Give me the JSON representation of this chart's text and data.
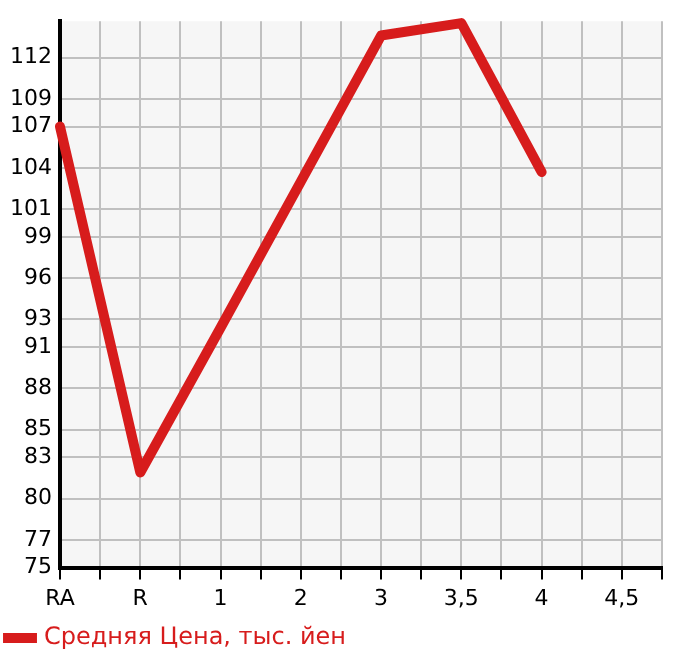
{
  "chart_data": {
    "type": "line",
    "categories": [
      "RA",
      null,
      "R",
      null,
      "1",
      null,
      "2",
      null,
      "3",
      null,
      "3,5",
      null,
      "4",
      null,
      "4,5",
      null
    ],
    "series": [
      {
        "name": "Средняя Цена, тыс. йен",
        "color": "#d71c1c",
        "values": [
          107,
          null,
          81.9,
          null,
          92.4,
          null,
          103,
          null,
          113.6,
          null,
          114.5,
          null,
          103.7,
          null,
          null,
          null
        ]
      }
    ],
    "ylim": [
      75,
      114.64
    ],
    "yticks": [
      75,
      77,
      80,
      83,
      85,
      88,
      91,
      93,
      96,
      99,
      101,
      104,
      107,
      109,
      112
    ],
    "grid": true,
    "legend": "bottom left",
    "marker": "none",
    "line_style": "solid"
  }
}
